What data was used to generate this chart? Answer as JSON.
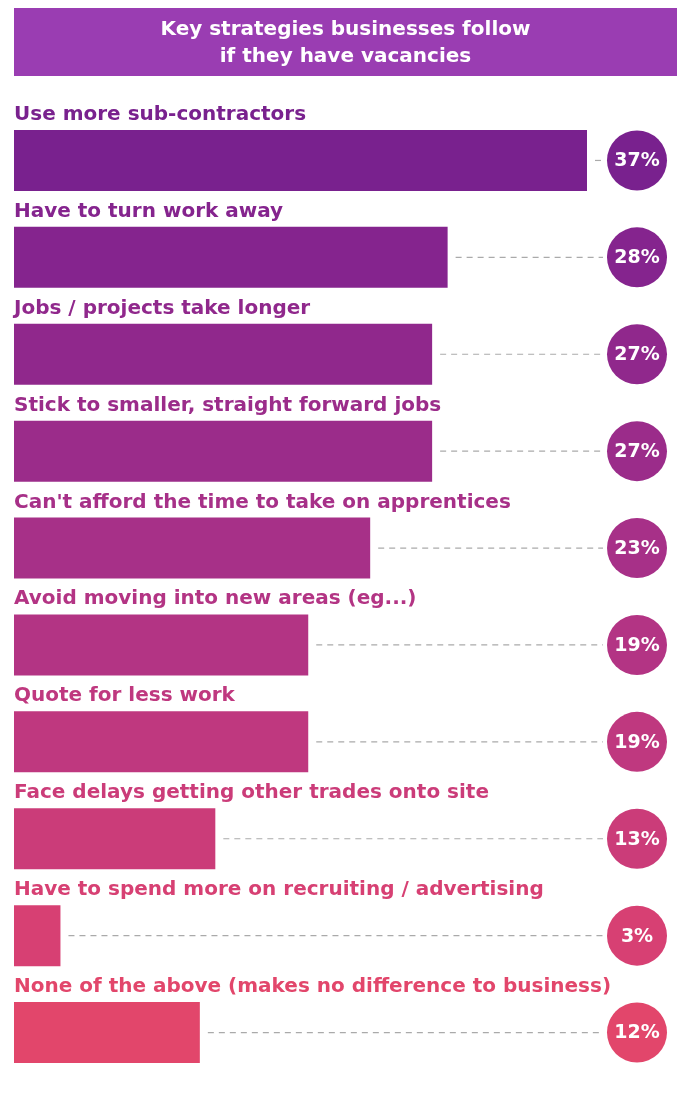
{
  "chart_data": {
    "type": "bar",
    "orientation": "horizontal",
    "title": "Key strategies businesses follow if they have vacancies",
    "categories": [
      "Use more sub-contractors",
      "Have to turn work away",
      "Jobs / projects take longer",
      "Stick to smaller, straight forward jobs",
      "Can't afford the time to take on apprentices",
      "Avoid moving into new areas (eg...)",
      "Quote for less work",
      "Face delays getting other trades onto site",
      "Have to spend more on recruiting / advertising",
      "None of the above (makes no difference to business)"
    ],
    "values": [
      37,
      28,
      27,
      27,
      23,
      19,
      19,
      13,
      3,
      12
    ],
    "colors": [
      "#79218e",
      "#85248e",
      "#90288c",
      "#9b2c8a",
      "#a73088",
      "#b33484",
      "#bf387f",
      "#cb3c79",
      "#d74073",
      "#e2466b"
    ],
    "value_labels": [
      "37%",
      "28%",
      "27%",
      "27%",
      "23%",
      "19%",
      "19%",
      "13%",
      "3%",
      "12%"
    ]
  }
}
